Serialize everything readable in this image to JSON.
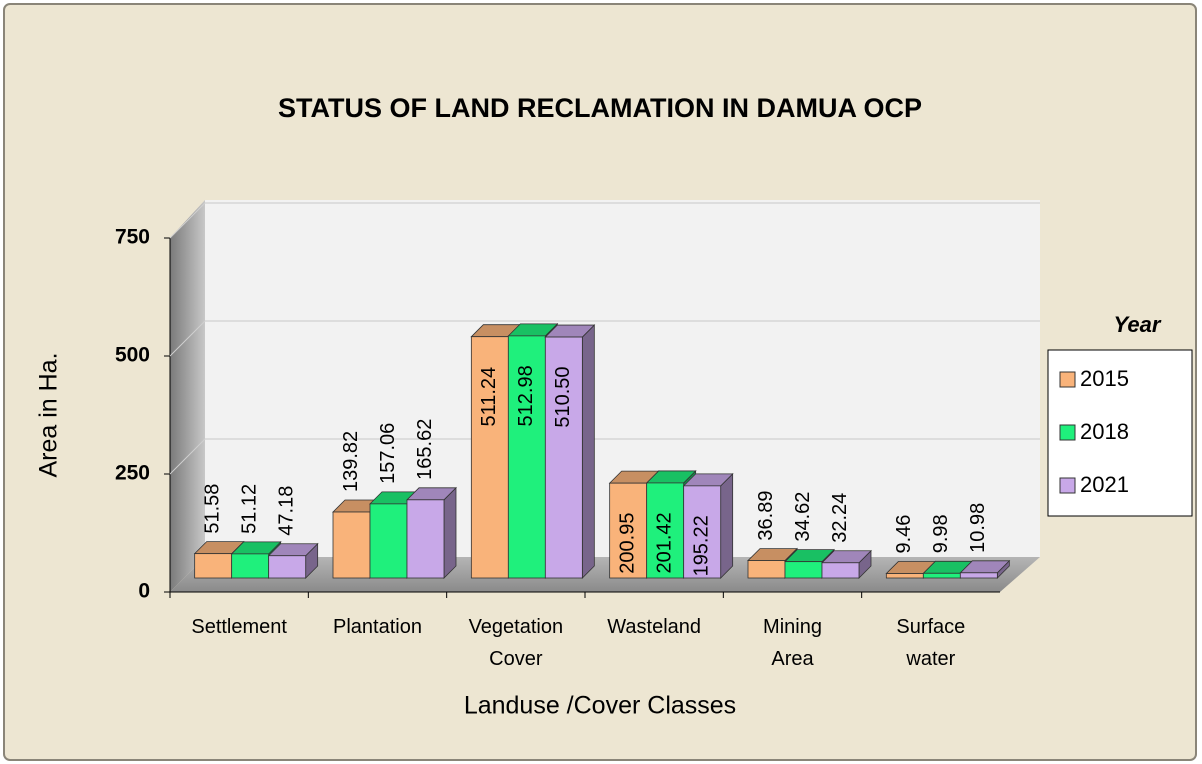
{
  "chart_data": {
    "type": "bar",
    "title": "STATUS OF LAND RECLAMATION IN DAMUA OCP",
    "x_label": "Landuse /Cover Classes",
    "y_label": "Area in Ha.",
    "legend_title": "Year",
    "legend": "right",
    "grid": true,
    "categories": [
      "Settlement",
      "Plantation",
      "Vegetation Cover",
      "Wasteland",
      "Mining Area",
      "Surface water"
    ],
    "series": [
      {
        "name": "2015",
        "color": "#f9b37a",
        "values": [
          51.58,
          139.82,
          511.24,
          200.95,
          36.89,
          9.46
        ],
        "value_labels": [
          "51.58",
          "139.82",
          "511.24",
          "200.95",
          "36.89",
          "9.46"
        ]
      },
      {
        "name": "2018",
        "color": "#1ff07c",
        "values": [
          51.12,
          157.06,
          512.98,
          201.42,
          34.62,
          9.98
        ],
        "value_labels": [
          "51.12",
          "157.06",
          "512.98",
          "201.42",
          "34.62",
          "9.98"
        ]
      },
      {
        "name": "2021",
        "color": "#c8a8e8",
        "values": [
          47.18,
          165.62,
          510.5,
          195.22,
          32.24,
          10.98
        ],
        "value_labels": [
          "47.18",
          "165.62",
          "510.50",
          "195.22",
          "32.24",
          "10.98"
        ]
      }
    ],
    "ylim": [
      0,
      750
    ],
    "yticks": [
      0,
      250,
      500,
      750
    ]
  }
}
